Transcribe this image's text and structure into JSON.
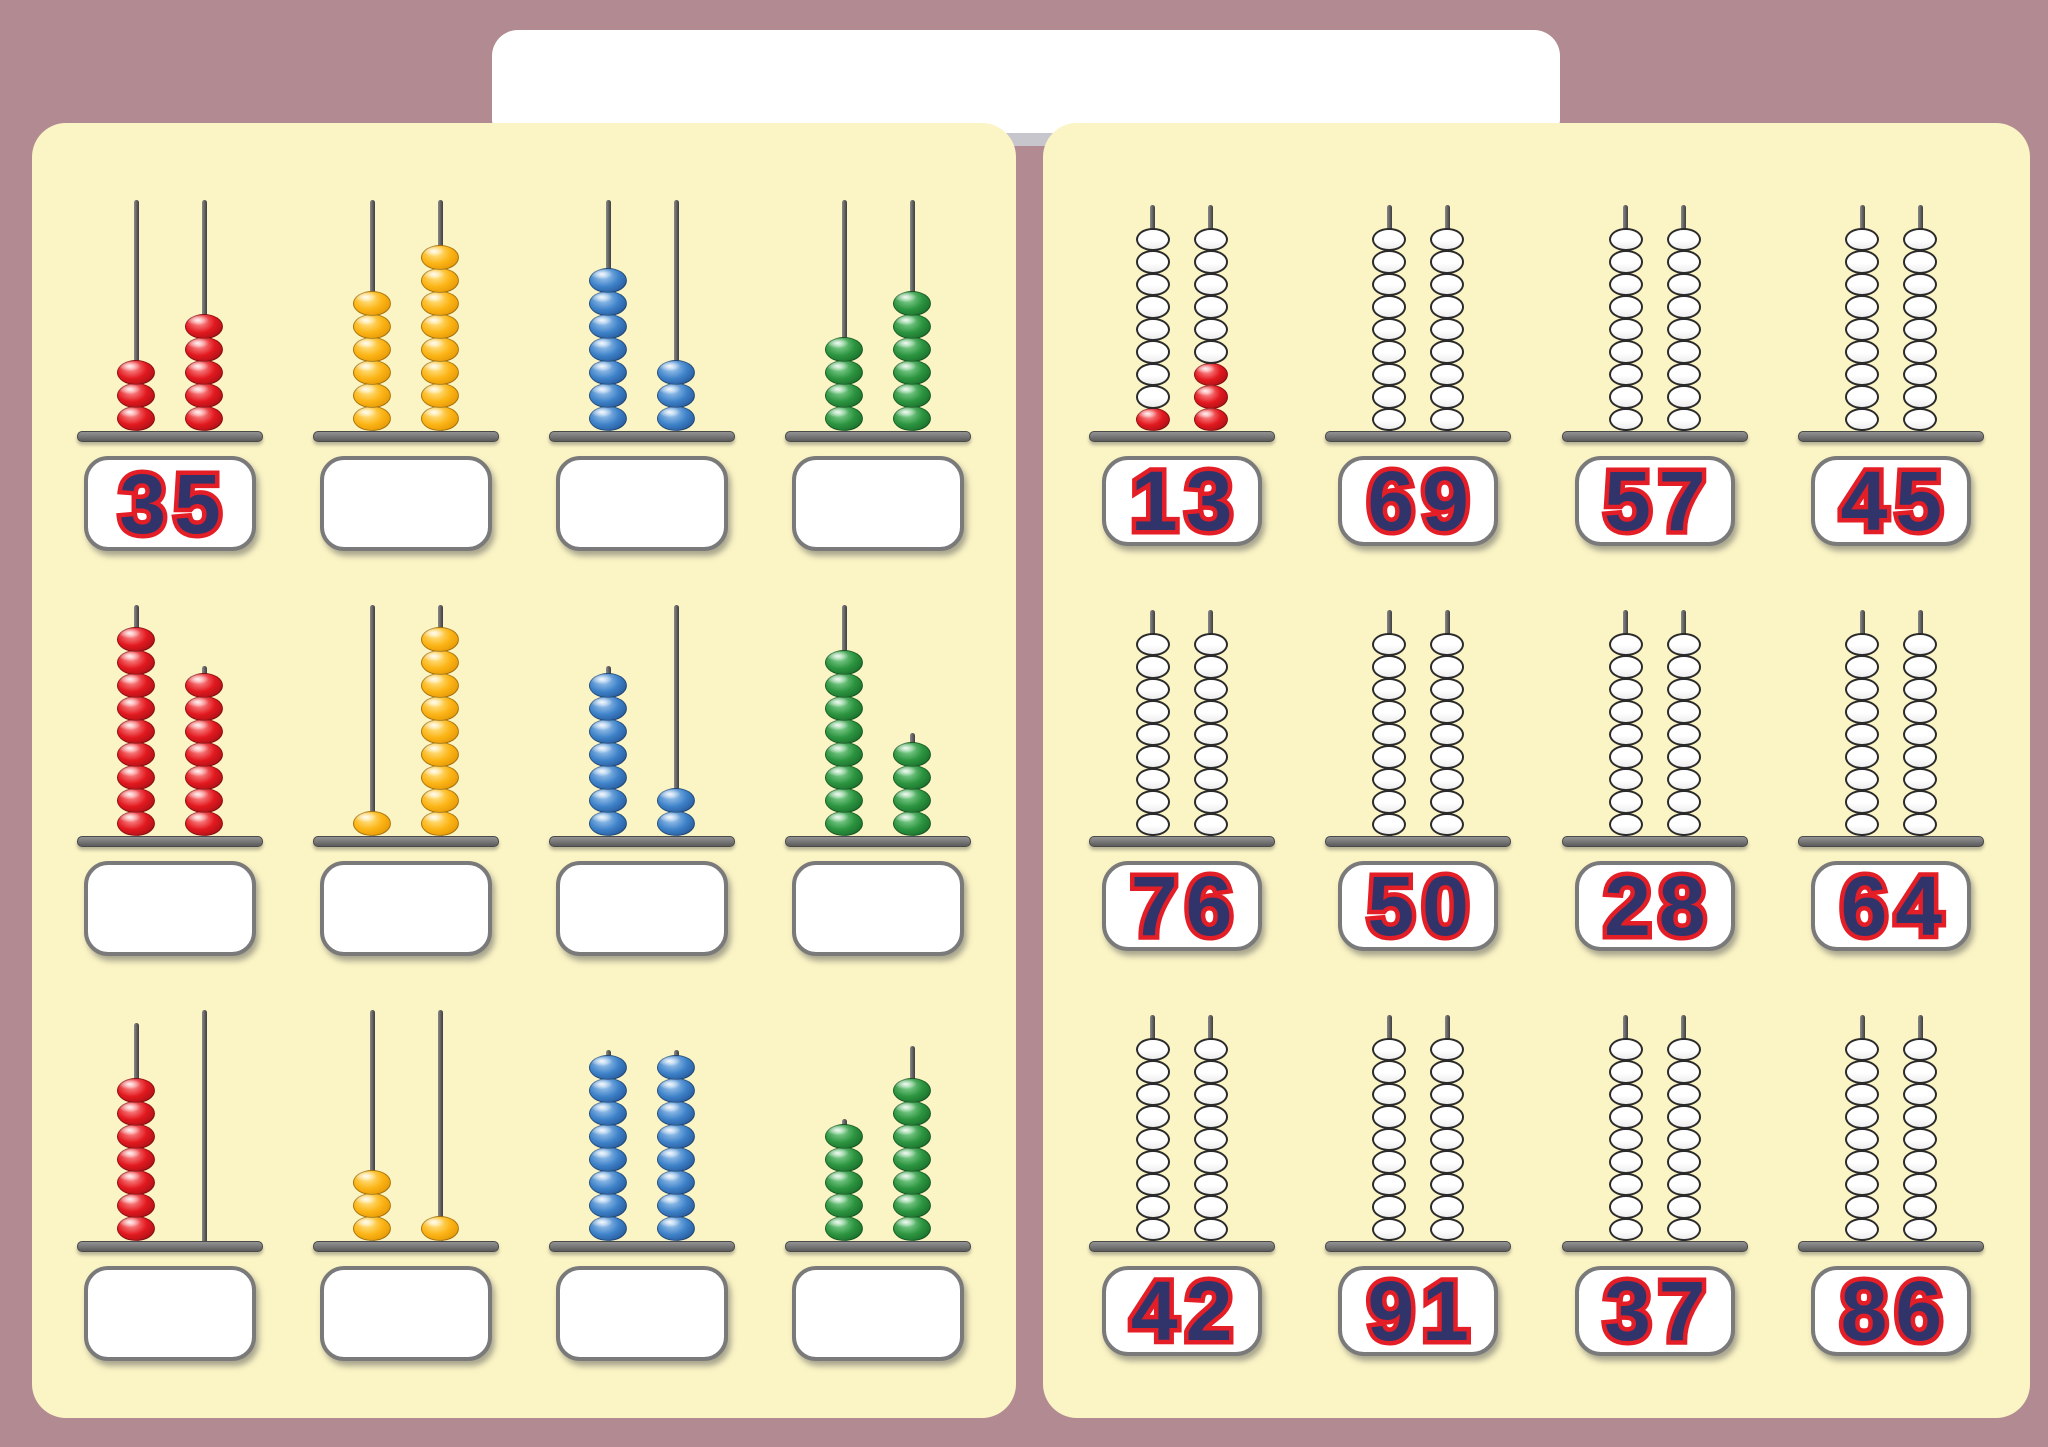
{
  "page": {
    "background_color": "#b28b92",
    "panel_color": "#fbf4c5",
    "title_box_text": ""
  },
  "colors": {
    "digit_fill": "#31346b",
    "digit_outline": "#e41e26",
    "box_border": "#7a7a7a",
    "bar": "#6e6e6e",
    "rod": "#5a5a5a",
    "bead_palette": {
      "red": {
        "light": "#ff9d9d",
        "main": "#e2191f",
        "dark": "#8f0d12"
      },
      "yellow": {
        "light": "#ffe893",
        "main": "#fcb415",
        "dark": "#d98a00"
      },
      "blue": {
        "light": "#a8cdf0",
        "main": "#3e82c9",
        "dark": "#1c4583"
      },
      "green": {
        "light": "#8fd79b",
        "main": "#2c9540",
        "dark": "#115c22"
      }
    },
    "white_bead": "#ffffff"
  },
  "left_panel": {
    "task": "count-beads-write-number",
    "rows": [
      [
        {
          "color": "red",
          "tens": 3,
          "ones": 5,
          "answer": "35",
          "rod_ext": [
            "full",
            "full"
          ]
        },
        {
          "color": "yellow",
          "tens": 6,
          "ones": 8,
          "answer": "",
          "rod_ext": [
            "full",
            "full"
          ]
        },
        {
          "color": "blue",
          "tens": 7,
          "ones": 3,
          "answer": "",
          "rod_ext": [
            "full",
            "full"
          ]
        },
        {
          "color": "green",
          "tens": 4,
          "ones": 6,
          "answer": "",
          "rod_ext": [
            "full",
            "full"
          ]
        }
      ],
      [
        {
          "color": "red",
          "tens": 9,
          "ones": 7,
          "answer": "",
          "rod_ext": [
            "full",
            0.4
          ]
        },
        {
          "color": "yellow",
          "tens": 1,
          "ones": 9,
          "answer": "",
          "rod_ext": [
            "full",
            "full"
          ]
        },
        {
          "color": "blue",
          "tens": 7,
          "ones": 2,
          "answer": "",
          "rod_ext": [
            0.4,
            "full"
          ]
        },
        {
          "color": "green",
          "tens": 8,
          "ones": 4,
          "answer": "",
          "rod_ext": [
            "full",
            0.5
          ]
        }
      ],
      [
        {
          "color": "red",
          "tens": 7,
          "ones": 0,
          "answer": "",
          "rod_ext": [
            2.5,
            "full"
          ]
        },
        {
          "color": "yellow",
          "tens": 3,
          "ones": 1,
          "answer": "",
          "rod_ext": [
            "full",
            "full"
          ]
        },
        {
          "color": "blue",
          "tens": 8,
          "ones": 8,
          "answer": "",
          "rod_ext": [
            0.3,
            0.3
          ]
        },
        {
          "color": "green",
          "tens": 5,
          "ones": 7,
          "answer": "",
          "rod_ext": [
            0.3,
            1.5
          ]
        }
      ]
    ]
  },
  "right_panel": {
    "task": "color-beads-to-match-number",
    "beads_per_rod": 9,
    "rows": [
      [
        {
          "number": "13",
          "tens_red": 1,
          "ones_red": 3,
          "example": true
        },
        {
          "number": "69",
          "tens_red": 0,
          "ones_red": 0,
          "example": false
        },
        {
          "number": "57",
          "tens_red": 0,
          "ones_red": 0,
          "example": false
        },
        {
          "number": "45",
          "tens_red": 0,
          "ones_red": 0,
          "example": false
        }
      ],
      [
        {
          "number": "76",
          "tens_red": 0,
          "ones_red": 0,
          "example": false
        },
        {
          "number": "50",
          "tens_red": 0,
          "ones_red": 0,
          "example": false
        },
        {
          "number": "28",
          "tens_red": 0,
          "ones_red": 0,
          "example": false
        },
        {
          "number": "64",
          "tens_red": 0,
          "ones_red": 0,
          "example": false
        }
      ],
      [
        {
          "number": "42",
          "tens_red": 0,
          "ones_red": 0,
          "example": false
        },
        {
          "number": "91",
          "tens_red": 0,
          "ones_red": 0,
          "example": false
        },
        {
          "number": "37",
          "tens_red": 0,
          "ones_red": 0,
          "example": false
        },
        {
          "number": "86",
          "tens_red": 0,
          "ones_red": 0,
          "example": false
        }
      ]
    ]
  }
}
